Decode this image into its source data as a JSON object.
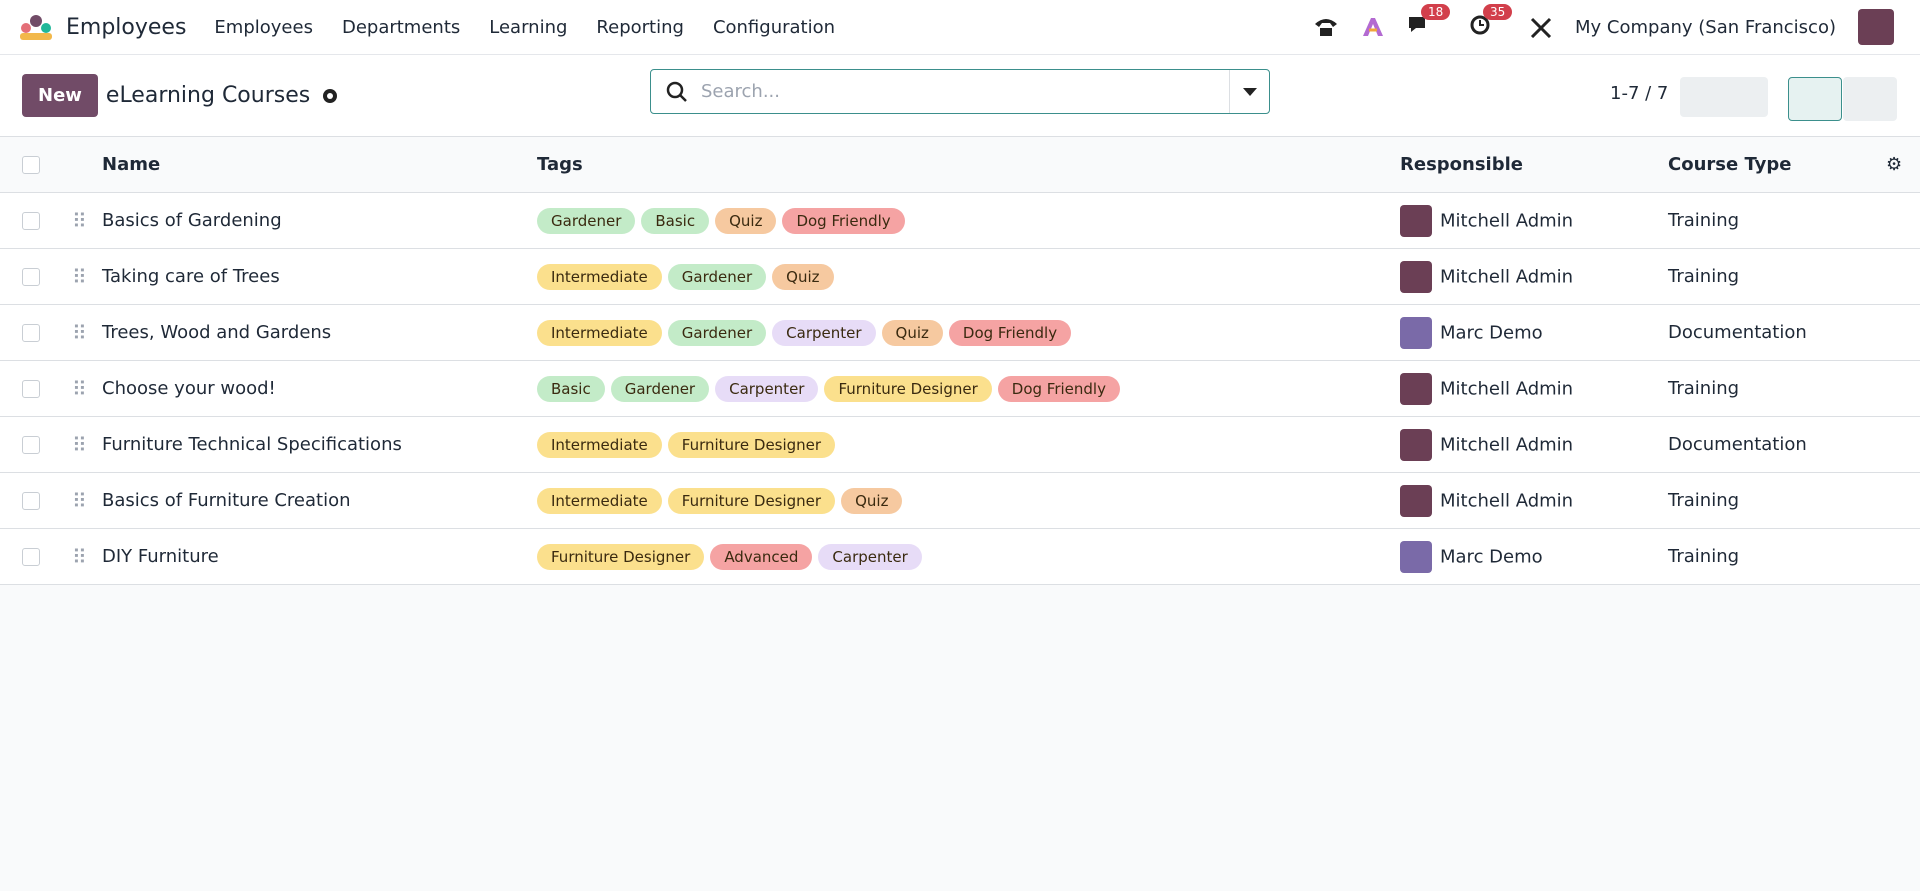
{
  "nav": {
    "app": "Employees",
    "menu": [
      "Employees",
      "Departments",
      "Learning",
      "Reporting",
      "Configuration"
    ],
    "messages_badge": "18",
    "activities_badge": "35",
    "company": "My Company (San Francisco)"
  },
  "control": {
    "new_button": "New",
    "title": "eLearning Courses",
    "search_placeholder": "Search...",
    "pager": "1-7 / 7"
  },
  "table": {
    "headers": [
      "Name",
      "Tags",
      "Responsible",
      "Course Type"
    ],
    "rows": [
      {
        "name": "Basics of Gardening",
        "tags": [
          {
            "label": "Gardener",
            "color": "#c3ebc8"
          },
          {
            "label": "Basic",
            "color": "#c3ebc8"
          },
          {
            "label": "Quiz",
            "color": "#f6c9a0"
          },
          {
            "label": "Dog Friendly",
            "color": "#f5a3a3"
          }
        ],
        "responsible": "Mitchell Admin",
        "avatar_color": "#6b3f55",
        "course_type": "Training"
      },
      {
        "name": "Taking care of Trees",
        "tags": [
          {
            "label": "Intermediate",
            "color": "#fbe08d"
          },
          {
            "label": "Gardener",
            "color": "#c3ebc8"
          },
          {
            "label": "Quiz",
            "color": "#f6c9a0"
          }
        ],
        "responsible": "Mitchell Admin",
        "avatar_color": "#6b3f55",
        "course_type": "Training"
      },
      {
        "name": "Trees, Wood and Gardens",
        "tags": [
          {
            "label": "Intermediate",
            "color": "#fbe08d"
          },
          {
            "label": "Gardener",
            "color": "#c3ebc8"
          },
          {
            "label": "Carpenter",
            "color": "#e7dcf7"
          },
          {
            "label": "Quiz",
            "color": "#f6c9a0"
          },
          {
            "label": "Dog Friendly",
            "color": "#f5a3a3"
          }
        ],
        "responsible": "Marc Demo",
        "avatar_color": "#7a6aa8",
        "course_type": "Documentation"
      },
      {
        "name": "Choose your wood!",
        "tags": [
          {
            "label": "Basic",
            "color": "#c3ebc8"
          },
          {
            "label": "Gardener",
            "color": "#c3ebc8"
          },
          {
            "label": "Carpenter",
            "color": "#e7dcf7"
          },
          {
            "label": "Furniture Designer",
            "color": "#fbe08d"
          },
          {
            "label": "Dog Friendly",
            "color": "#f5a3a3"
          }
        ],
        "responsible": "Mitchell Admin",
        "avatar_color": "#6b3f55",
        "course_type": "Training"
      },
      {
        "name": "Furniture Technical Specifications",
        "tags": [
          {
            "label": "Intermediate",
            "color": "#fbe08d"
          },
          {
            "label": "Furniture Designer",
            "color": "#fbe08d"
          }
        ],
        "responsible": "Mitchell Admin",
        "avatar_color": "#6b3f55",
        "course_type": "Documentation"
      },
      {
        "name": "Basics of Furniture Creation",
        "tags": [
          {
            "label": "Intermediate",
            "color": "#fbe08d"
          },
          {
            "label": "Furniture Designer",
            "color": "#fbe08d"
          },
          {
            "label": "Quiz",
            "color": "#f6c9a0"
          }
        ],
        "responsible": "Mitchell Admin",
        "avatar_color": "#6b3f55",
        "course_type": "Training"
      },
      {
        "name": "DIY Furniture",
        "tags": [
          {
            "label": "Furniture Designer",
            "color": "#fbe08d"
          },
          {
            "label": "Advanced",
            "color": "#f5a3a3"
          },
          {
            "label": "Carpenter",
            "color": "#e7dcf7"
          }
        ],
        "responsible": "Marc Demo",
        "avatar_color": "#7a6aa8",
        "course_type": "Training"
      }
    ]
  }
}
